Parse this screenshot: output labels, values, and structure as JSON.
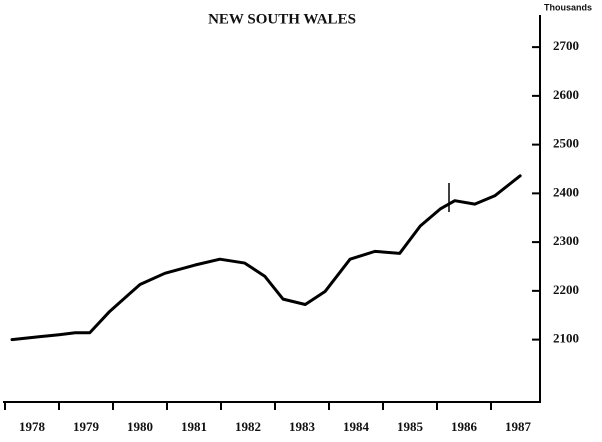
{
  "chart_data": {
    "type": "line",
    "title": "NEW SOUTH WALES",
    "y_axis_label": "Thousands",
    "categories": [
      "1978",
      "1979",
      "1980",
      "1981",
      "1982",
      "1983",
      "1984",
      "1985",
      "1986",
      "1987"
    ],
    "xlim": [
      1978,
      1988
    ],
    "series": [
      {
        "name": "New South Wales",
        "color": "#000000",
        "x": [
          1978.13,
          1978.65,
          1979.0,
          1979.3,
          1979.57,
          1979.94,
          1980.5,
          1980.96,
          1981.52,
          1981.98,
          1982.44,
          1982.81,
          1983.15,
          1983.56,
          1983.93,
          1984.39,
          1984.85,
          1985.31,
          1985.69,
          1986.06,
          1986.33,
          1986.7,
          1987.07,
          1987.54
        ],
        "values": [
          2100,
          2106,
          2110,
          2114,
          2114,
          2158,
          2213,
          2236,
          2253,
          2265,
          2257,
          2230,
          2183,
          2172,
          2199,
          2265,
          2281,
          2277,
          2333,
          2368,
          2385,
          2378,
          2395,
          2436
        ]
      }
    ],
    "ylim": [
      1972,
      2770
    ],
    "yticks": [
      2100,
      2200,
      2300,
      2400,
      2500,
      2600,
      2700
    ],
    "grid": false
  }
}
